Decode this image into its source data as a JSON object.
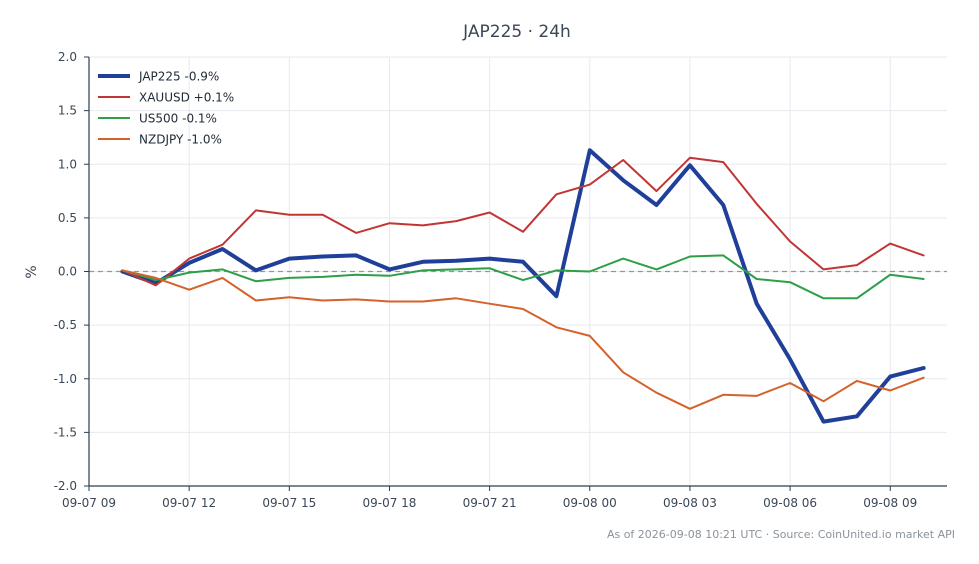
{
  "chart_data": {
    "type": "line",
    "title": "JAP225 · 24h",
    "xlabel": "",
    "ylabel": "%",
    "ylim": [
      -2.0,
      2.0
    ],
    "yticks": [
      -2.0,
      -1.5,
      -1.0,
      -0.5,
      0.0,
      0.5,
      1.0,
      1.5,
      2.0
    ],
    "xlim": [
      0,
      25.7
    ],
    "xticks": [
      {
        "at": 0,
        "label": "09-07 09"
      },
      {
        "at": 3,
        "label": "09-07 12"
      },
      {
        "at": 6,
        "label": "09-07 15"
      },
      {
        "at": 9,
        "label": "09-07 18"
      },
      {
        "at": 12,
        "label": "09-07 21"
      },
      {
        "at": 15,
        "label": "09-08 00"
      },
      {
        "at": 18,
        "label": "09-08 03"
      },
      {
        "at": 21,
        "label": "09-08 06"
      },
      {
        "at": 24,
        "label": "09-08 09"
      }
    ],
    "x": [
      1,
      2,
      3,
      4,
      5,
      6,
      7,
      8,
      9,
      10,
      11,
      12,
      13,
      14,
      15,
      16,
      17,
      18,
      19,
      20,
      21,
      22,
      23,
      24,
      25
    ],
    "grid": true,
    "zero_line": true,
    "legend_position": "top-left",
    "series": [
      {
        "name": "JAP225 -0.9%",
        "color": "#1f3f99",
        "width": 4,
        "values": [
          0.0,
          -0.11,
          0.08,
          0.21,
          0.01,
          0.12,
          0.14,
          0.15,
          0.02,
          0.09,
          0.1,
          0.12,
          0.09,
          -0.23,
          1.13,
          0.85,
          0.62,
          0.99,
          0.62,
          -0.3,
          -0.82,
          -1.4,
          -1.35,
          -0.98,
          -0.9
        ]
      },
      {
        "name": "XAUUSD +0.1%",
        "color": "#c23535",
        "width": 2,
        "values": [
          0.01,
          -0.13,
          0.12,
          0.25,
          0.57,
          0.53,
          0.53,
          0.36,
          0.45,
          0.43,
          0.47,
          0.55,
          0.37,
          0.72,
          0.81,
          1.04,
          0.75,
          1.06,
          1.02,
          0.63,
          0.28,
          0.02,
          0.06,
          0.26,
          0.15
        ]
      },
      {
        "name": "US500 -0.1%",
        "color": "#2e9e48",
        "width": 2,
        "values": [
          0.01,
          -0.08,
          -0.01,
          0.02,
          -0.09,
          -0.06,
          -0.05,
          -0.03,
          -0.04,
          0.01,
          0.02,
          0.03,
          -0.08,
          0.01,
          0.0,
          0.12,
          0.02,
          0.14,
          0.15,
          -0.07,
          -0.1,
          -0.25,
          -0.25,
          -0.03,
          -0.07
        ]
      },
      {
        "name": "NZDJPY -1.0%",
        "color": "#d4622a",
        "width": 2,
        "values": [
          0.01,
          -0.06,
          -0.17,
          -0.06,
          -0.27,
          -0.24,
          -0.27,
          -0.26,
          -0.28,
          -0.28,
          -0.25,
          -0.3,
          -0.35,
          -0.52,
          -0.6,
          -0.94,
          -1.13,
          -1.28,
          -1.15,
          -1.16,
          -1.04,
          -1.21,
          -1.02,
          -1.11,
          -0.99
        ]
      }
    ],
    "footer": "As of 2026-09-08 10:21 UTC · Source: CoinUnited.io market API"
  },
  "style": {
    "axis_color": "#2c3e50",
    "grid_color": "#e6e9ee",
    "zero_line_color": "#8a9aa8",
    "text_color": "#3a4756",
    "footer_color": "#8a939c"
  }
}
